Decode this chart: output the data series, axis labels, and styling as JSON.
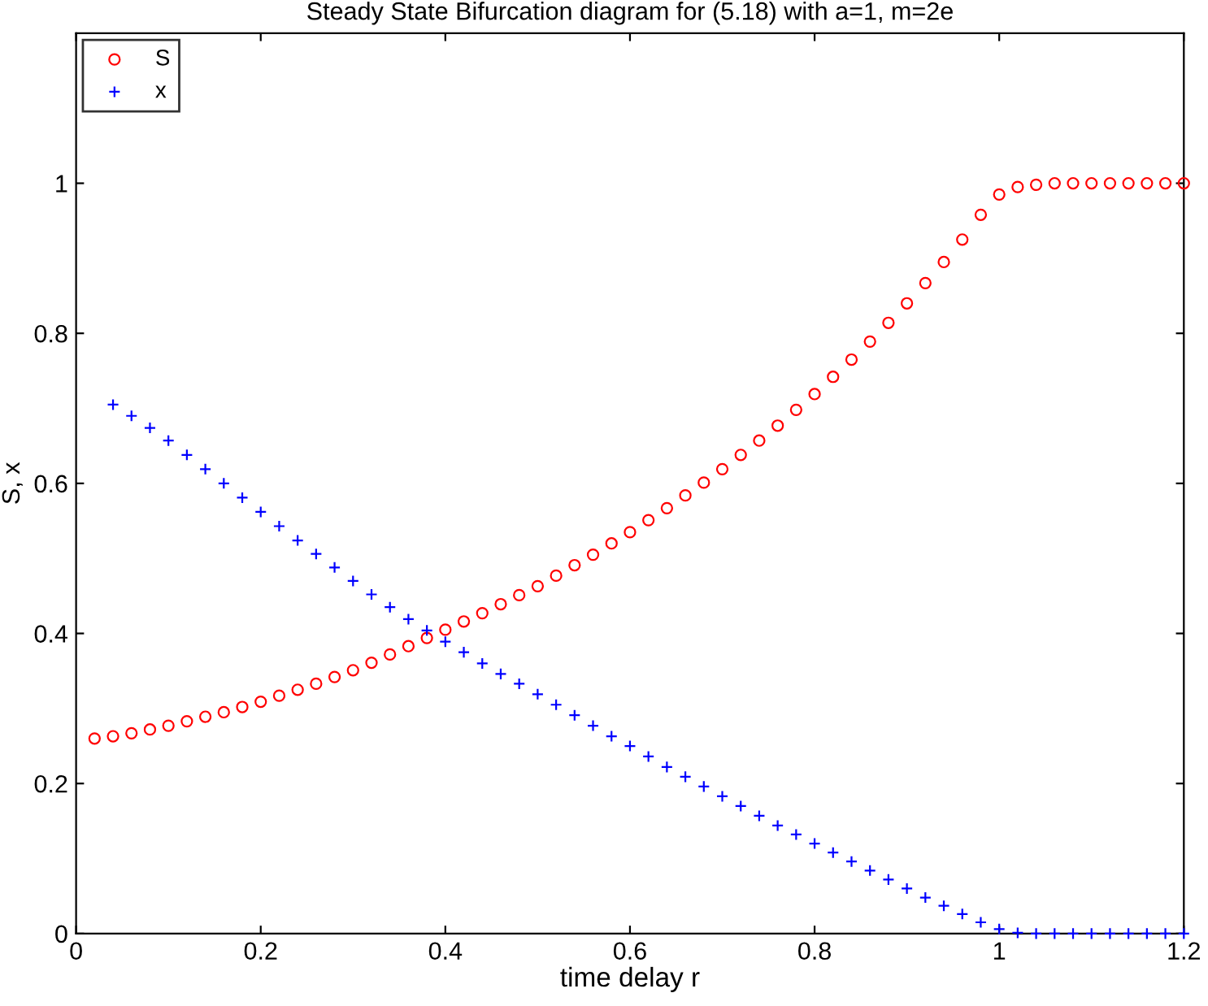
{
  "chart_data": {
    "type": "scatter",
    "title": "Steady State Bifurcation diagram for (5.18) with a=1, m=2e",
    "xlabel": "time delay r",
    "ylabel": "S, x",
    "xlim": [
      0,
      1.2
    ],
    "xticks": [
      0,
      0.2,
      0.4,
      0.6,
      0.8,
      1,
      1.2
    ],
    "ylim": [
      0,
      1.2
    ],
    "yticks": [
      0,
      0.2,
      0.4,
      0.6,
      0.8,
      1
    ],
    "grid": false,
    "legend": "top left",
    "series": [
      {
        "name": "S",
        "color": "#ff0000",
        "marker": "circle",
        "x": [
          0.02,
          0.04,
          0.06,
          0.08,
          0.1,
          0.12,
          0.14,
          0.16,
          0.18,
          0.2,
          0.22,
          0.24,
          0.26,
          0.28,
          0.3,
          0.32,
          0.34,
          0.36,
          0.38,
          0.4,
          0.42,
          0.44,
          0.46,
          0.48,
          0.5,
          0.52,
          0.54,
          0.56,
          0.58,
          0.6,
          0.62,
          0.64,
          0.66,
          0.68,
          0.7,
          0.72,
          0.74,
          0.76,
          0.78,
          0.8,
          0.82,
          0.84,
          0.86,
          0.88,
          0.9,
          0.92,
          0.94,
          0.96,
          0.98,
          1.0,
          1.02,
          1.04,
          1.06,
          1.08,
          1.1,
          1.12,
          1.14,
          1.16,
          1.18,
          1.2
        ],
        "values": [
          0.26,
          0.263,
          0.267,
          0.272,
          0.277,
          0.283,
          0.289,
          0.295,
          0.302,
          0.309,
          0.317,
          0.325,
          0.333,
          0.342,
          0.351,
          0.361,
          0.372,
          0.383,
          0.394,
          0.405,
          0.416,
          0.427,
          0.439,
          0.451,
          0.463,
          0.477,
          0.491,
          0.505,
          0.52,
          0.535,
          0.551,
          0.567,
          0.584,
          0.601,
          0.619,
          0.638,
          0.657,
          0.677,
          0.698,
          0.719,
          0.742,
          0.765,
          0.789,
          0.814,
          0.84,
          0.867,
          0.895,
          0.925,
          0.958,
          0.985,
          0.995,
          0.998,
          1.0,
          1.0,
          1.0,
          1.0,
          1.0,
          1.0,
          1.0,
          1.0
        ]
      },
      {
        "name": "x",
        "color": "#0000ff",
        "marker": "cross",
        "x": [
          0.04,
          0.06,
          0.08,
          0.1,
          0.12,
          0.14,
          0.16,
          0.18,
          0.2,
          0.22,
          0.24,
          0.26,
          0.28,
          0.3,
          0.32,
          0.34,
          0.36,
          0.38,
          0.4,
          0.42,
          0.44,
          0.46,
          0.48,
          0.5,
          0.52,
          0.54,
          0.56,
          0.58,
          0.6,
          0.62,
          0.64,
          0.66,
          0.68,
          0.7,
          0.72,
          0.74,
          0.76,
          0.78,
          0.8,
          0.82,
          0.84,
          0.86,
          0.88,
          0.9,
          0.92,
          0.94,
          0.96,
          0.98,
          1.0,
          1.02,
          1.04,
          1.06,
          1.08,
          1.1,
          1.12,
          1.14,
          1.16,
          1.18,
          1.2
        ],
        "values": [
          0.705,
          0.69,
          0.674,
          0.657,
          0.638,
          0.619,
          0.6,
          0.581,
          0.562,
          0.543,
          0.524,
          0.506,
          0.488,
          0.47,
          0.452,
          0.435,
          0.419,
          0.404,
          0.389,
          0.375,
          0.36,
          0.346,
          0.333,
          0.319,
          0.305,
          0.291,
          0.277,
          0.263,
          0.25,
          0.236,
          0.222,
          0.209,
          0.196,
          0.183,
          0.17,
          0.157,
          0.144,
          0.132,
          0.12,
          0.108,
          0.096,
          0.084,
          0.072,
          0.06,
          0.048,
          0.037,
          0.026,
          0.015,
          0.006,
          0.001,
          0,
          0,
          0,
          0,
          0,
          0,
          0,
          0,
          0
        ]
      }
    ]
  }
}
